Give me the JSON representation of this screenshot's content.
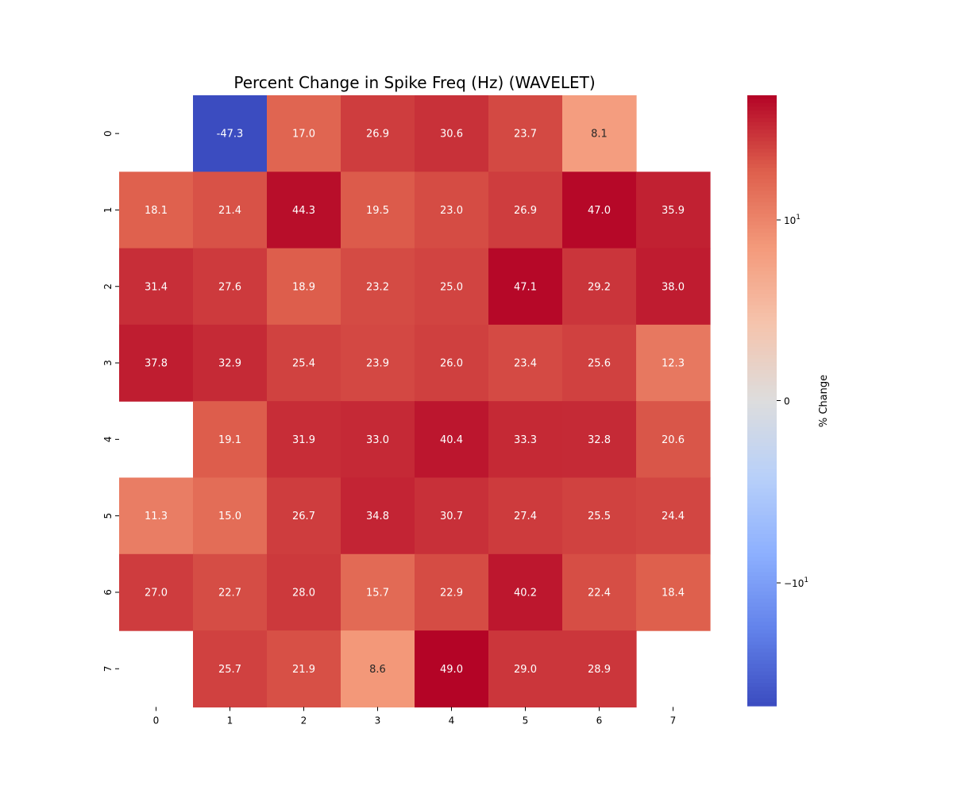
{
  "chart_data": {
    "type": "heatmap",
    "title": "Percent Change in Spike Freq (Hz) (WAVELET)",
    "xlabel": "",
    "ylabel": "",
    "x_categories": [
      "0",
      "1",
      "2",
      "3",
      "4",
      "5",
      "6",
      "7"
    ],
    "y_categories": [
      "0",
      "1",
      "2",
      "3",
      "4",
      "5",
      "6",
      "7"
    ],
    "values": [
      [
        null,
        -47.3,
        17.0,
        26.9,
        30.6,
        23.7,
        8.1,
        null
      ],
      [
        18.1,
        21.4,
        44.3,
        19.5,
        23.0,
        26.9,
        47.0,
        35.9
      ],
      [
        31.4,
        27.6,
        18.9,
        23.2,
        25.0,
        47.1,
        29.2,
        38.0
      ],
      [
        37.8,
        32.9,
        25.4,
        23.9,
        26.0,
        23.4,
        25.6,
        12.3
      ],
      [
        null,
        19.1,
        31.9,
        33.0,
        40.4,
        33.3,
        32.8,
        20.6
      ],
      [
        11.3,
        15.0,
        26.7,
        34.8,
        30.7,
        27.4,
        25.5,
        24.4
      ],
      [
        27.0,
        22.7,
        28.0,
        15.7,
        22.9,
        40.2,
        22.4,
        18.4
      ],
      [
        null,
        25.7,
        21.9,
        8.6,
        49.0,
        29.0,
        28.9,
        null
      ]
    ],
    "colormap": "coolwarm",
    "color_scale": "symlog",
    "vmin": -47.3,
    "vmax": 49.0,
    "colorbar": {
      "label": "% Change",
      "ticks": [
        {
          "value": 10,
          "label": "10",
          "sup": "1",
          "prefix": ""
        },
        {
          "value": 0,
          "label": "0",
          "sup": "",
          "prefix": ""
        },
        {
          "value": -10,
          "label": "10",
          "sup": "1",
          "prefix": "−"
        }
      ]
    },
    "annotations": true,
    "grid": false,
    "legend": "colorbar-right"
  }
}
